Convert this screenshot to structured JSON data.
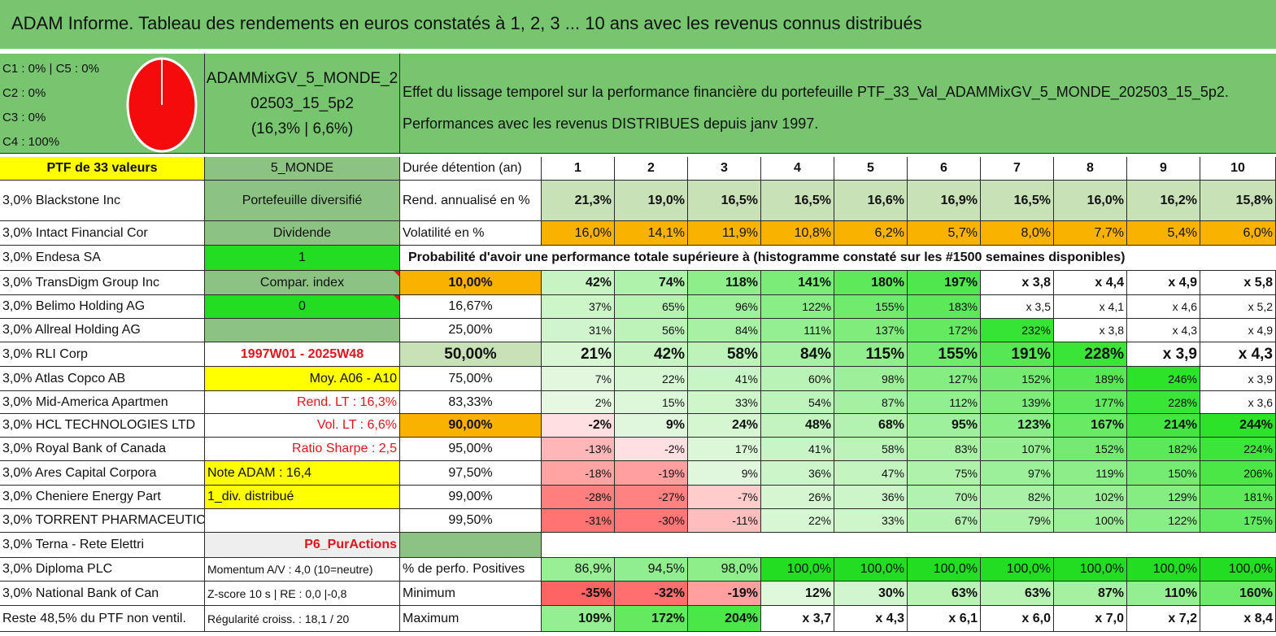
{
  "title": "ADAM Informe. Tableau des rendements en euros constatés à 1, 2, 3 ... 10 ans avec les revenus connus distribués",
  "classes": [
    "C1 : 0% | C5 : 0%",
    "C2 : 0%",
    "C3 : 0%",
    "C4 : 100%"
  ],
  "pie": {
    "color": "#f50b0b",
    "c4_fraction": 1.0
  },
  "fund": {
    "name_line1": "ADAMMixGV_5_MONDE_2",
    "name_line2": "02503_15_5p2",
    "name_line3": "(16,3% | 6,6%)"
  },
  "effect": {
    "line1": "Effet du lissage temporel sur la performance financière du portefeuille PTF_33_Val_ADAMMixGV_5_MONDE_202503_15_5p2.",
    "line2": "Performances avec les revenus DISTRIBUES depuis janv 1997."
  },
  "left_header": "PTF de 33 valeurs",
  "holdings": [
    "3,0% Blackstone Inc",
    "3,0% Intact Financial Cor",
    "3,0% Endesa SA",
    "3,0% TransDigm Group Inc",
    "3,0% Belimo Holding AG",
    "3,0% Allreal Holding AG",
    "3,0% RLI Corp",
    "3,0% Atlas Copco AB",
    "3,0% Mid-America Apartmen",
    "3,0% HCL TECHNOLOGIES LTD",
    "3,0% Royal Bank of Canada",
    "3,0% Ares Capital Corpora",
    "3,0% Cheniere Energy Part",
    "3,0% TORRENT PHARMACEUTIC",
    "3,0% Terna - Rete Elettri",
    "3,0% Diploma PLC",
    "3,0% National Bank of Can",
    "Reste 48,5% du PTF non ventil."
  ],
  "info": [
    "5_MONDE",
    "Portefeuille diversifié",
    "Dividende",
    "1",
    "Compar. index",
    "0",
    "",
    "1997W01 - 2025W48",
    "Moy. A06 - A10",
    "Rend. LT : 16,3%",
    "Vol. LT : 6,6%",
    "Ratio Sharpe : 2,5",
    "Note ADAM : 16,4",
    "1_div. distribué",
    "",
    "P6_PurActions",
    "Momentum A/V : 4,0 (10=neutre)",
    "Z-score 10 s | RE : 0,0 |-0,8",
    "Régularité croiss. : 18,1 / 20"
  ],
  "table": {
    "duration_label": "Durée détention (an)",
    "years": [
      "1",
      "2",
      "3",
      "4",
      "5",
      "6",
      "7",
      "8",
      "9",
      "10"
    ],
    "rend_label": "Rend. annualisé en %",
    "rend": [
      "21,3%",
      "19,0%",
      "16,5%",
      "16,5%",
      "16,6%",
      "16,9%",
      "16,5%",
      "16,0%",
      "16,2%",
      "15,8%"
    ],
    "vol_label": "Volatilité en %",
    "vol": [
      "16,0%",
      "14,1%",
      "11,9%",
      "10,8%",
      "6,2%",
      "5,7%",
      "8,0%",
      "7,7%",
      "5,4%",
      "6,0%"
    ],
    "prob_title": "Probabilité d'avoir une performance totale supérieure à (histogramme constaté sur les #1500 semaines disponibles)",
    "prob_rows": [
      {
        "p": "10,00%",
        "v": [
          "42%",
          "74%",
          "118%",
          "141%",
          "180%",
          "197%",
          "x 3,8",
          "x 4,4",
          "x 4,9",
          "x 5,8"
        ]
      },
      {
        "p": "16,67%",
        "v": [
          "37%",
          "65%",
          "96%",
          "122%",
          "155%",
          "183%",
          "x 3,5",
          "x 4,1",
          "x 4,6",
          "x 5,2"
        ]
      },
      {
        "p": "25,00%",
        "v": [
          "31%",
          "56%",
          "84%",
          "111%",
          "137%",
          "172%",
          "232%",
          "x 3,8",
          "x 4,3",
          "x 4,9"
        ]
      },
      {
        "p": "50,00%",
        "v": [
          "21%",
          "42%",
          "58%",
          "84%",
          "115%",
          "155%",
          "191%",
          "228%",
          "x 3,9",
          "x 4,3"
        ]
      },
      {
        "p": "75,00%",
        "v": [
          "7%",
          "22%",
          "41%",
          "60%",
          "98%",
          "127%",
          "152%",
          "189%",
          "246%",
          "x 3,9"
        ]
      },
      {
        "p": "83,33%",
        "v": [
          "2%",
          "15%",
          "33%",
          "54%",
          "87%",
          "112%",
          "139%",
          "177%",
          "228%",
          "x 3,6"
        ]
      },
      {
        "p": "90,00%",
        "v": [
          "-2%",
          "9%",
          "24%",
          "48%",
          "68%",
          "95%",
          "123%",
          "167%",
          "214%",
          "244%"
        ]
      },
      {
        "p": "95,00%",
        "v": [
          "-13%",
          "-2%",
          "17%",
          "41%",
          "58%",
          "83%",
          "107%",
          "152%",
          "182%",
          "224%"
        ]
      },
      {
        "p": "97,50%",
        "v": [
          "-18%",
          "-19%",
          "9%",
          "36%",
          "47%",
          "75%",
          "97%",
          "119%",
          "150%",
          "206%"
        ]
      },
      {
        "p": "99,00%",
        "v": [
          "-28%",
          "-27%",
          "-7%",
          "26%",
          "36%",
          "70%",
          "82%",
          "102%",
          "129%",
          "181%"
        ]
      },
      {
        "p": "99,50%",
        "v": [
          "-31%",
          "-30%",
          "-11%",
          "22%",
          "33%",
          "67%",
          "79%",
          "100%",
          "122%",
          "175%"
        ]
      }
    ],
    "pos_label": "% de perfo. Positives",
    "pos": [
      "86,9%",
      "94,5%",
      "98,0%",
      "100,0%",
      "100,0%",
      "100,0%",
      "100,0%",
      "100,0%",
      "100,0%",
      "100,0%"
    ],
    "min_label": "Minimum",
    "min": [
      "-35%",
      "-32%",
      "-19%",
      "12%",
      "30%",
      "63%",
      "63%",
      "87%",
      "110%",
      "160%"
    ],
    "max_label": "Maximum",
    "max": [
      "109%",
      "172%",
      "204%",
      "x 3,7",
      "x 4,3",
      "x 6,1",
      "x 6,0",
      "x 7,0",
      "x 7,2",
      "x 8,4"
    ]
  },
  "colors": {
    "header_green": "#77c56f",
    "yellow": "#ffff00",
    "bright_green": "#22dd22",
    "mid_green": "#8cc383",
    "orange": "#f9b200",
    "light_grey": "#eeeeee",
    "red_text": "#e0141b",
    "rend_fill": "#c8e1b7"
  }
}
